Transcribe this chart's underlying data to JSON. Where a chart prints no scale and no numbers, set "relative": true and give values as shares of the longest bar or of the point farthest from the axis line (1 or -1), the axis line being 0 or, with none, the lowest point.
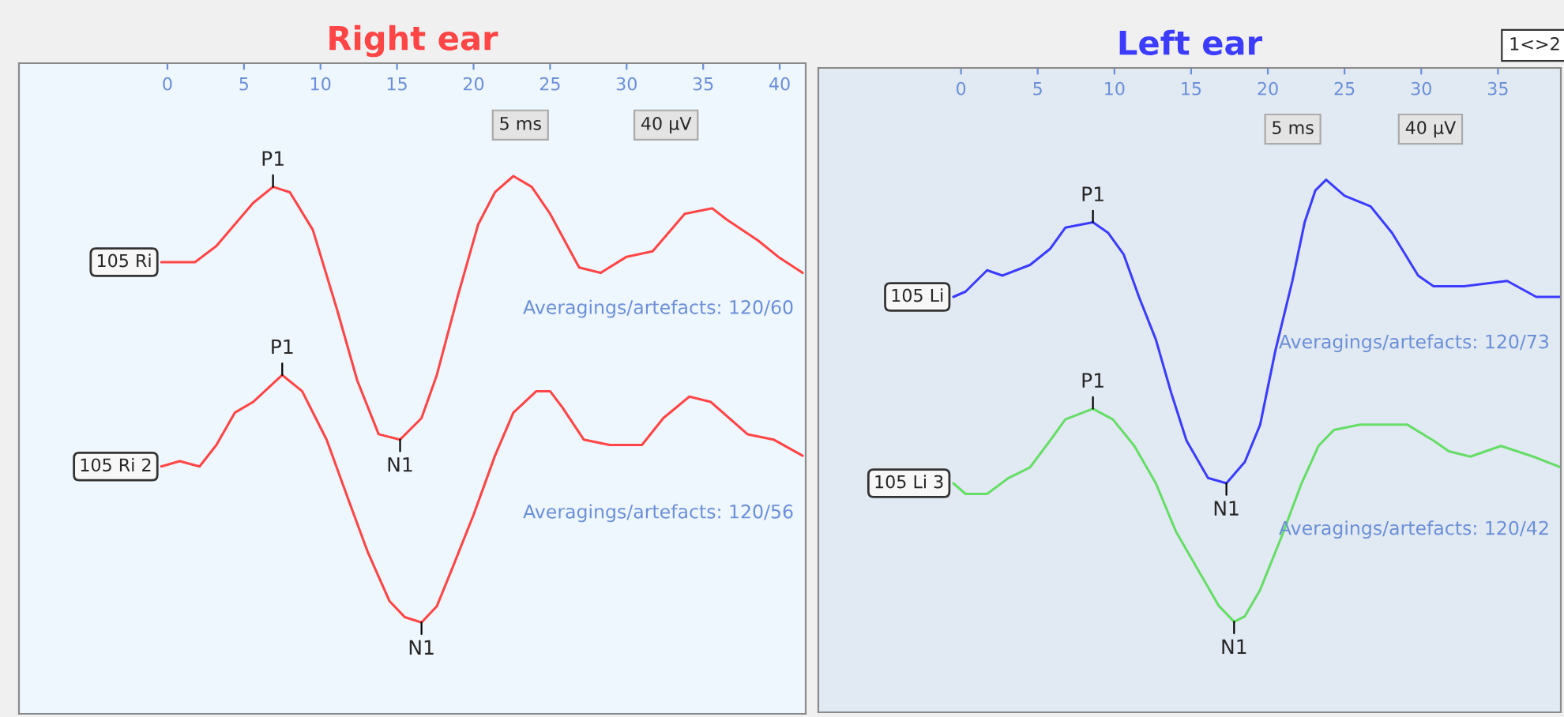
{
  "chart_data": [
    {
      "type": "line",
      "title": "Right ear",
      "relative": true,
      "xlim": [
        -9.7,
        41.7
      ],
      "xticks": [
        0,
        5,
        10,
        15,
        20,
        25,
        30,
        35,
        40
      ],
      "tick_labels": "x",
      "legend": false,
      "series": [
        {
          "name": "105 Ri",
          "color": "#ff4545",
          "x": [
            -0.4,
            1.8,
            3.2,
            4.4,
            5.6,
            6.9,
            8.0,
            9.5,
            11.1,
            12.4,
            13.8,
            15.2,
            16.6,
            17.6,
            19.0,
            20.3,
            21.4,
            22.6,
            23.8,
            25.0,
            26.9,
            28.3,
            30.0,
            31.7,
            33.8,
            35.6,
            36.5,
            38.6,
            39.9,
            41.5
          ],
          "values": [
            0.84,
            0.84,
            0.87,
            0.91,
            0.95,
            0.98,
            0.97,
            0.9,
            0.75,
            0.62,
            0.52,
            0.51,
            0.55,
            0.63,
            0.78,
            0.91,
            0.97,
            1.0,
            0.98,
            0.93,
            0.83,
            0.82,
            0.85,
            0.86,
            0.93,
            0.94,
            0.92,
            0.88,
            0.85,
            0.82
          ]
        },
        {
          "name": "105 Ri 2",
          "color": "#ff4545",
          "x": [
            -0.4,
            0.8,
            2.1,
            3.2,
            4.4,
            5.6,
            7.5,
            8.8,
            10.4,
            11.8,
            13.1,
            14.5,
            15.5,
            16.6,
            17.6,
            18.6,
            20.0,
            21.4,
            22.6,
            24.1,
            25.0,
            25.8,
            27.2,
            28.9,
            31.0,
            32.4,
            34.1,
            35.5,
            37.9,
            39.6,
            41.5
          ],
          "values": [
            0.46,
            0.47,
            0.46,
            0.5,
            0.56,
            0.58,
            0.63,
            0.6,
            0.51,
            0.4,
            0.3,
            0.21,
            0.18,
            0.17,
            0.2,
            0.27,
            0.37,
            0.48,
            0.56,
            0.6,
            0.6,
            0.57,
            0.51,
            0.5,
            0.5,
            0.55,
            0.59,
            0.58,
            0.52,
            0.51,
            0.48
          ]
        }
      ],
      "annotations": [
        {
          "text": "P1",
          "x": 6.9,
          "y": 0.98
        },
        {
          "text": "N1",
          "x": 15.2,
          "y": 0.51
        },
        {
          "text": "P1",
          "x": 7.5,
          "y": 0.63
        },
        {
          "text": "N1",
          "x": 16.6,
          "y": 0.17
        },
        "Averagings/artefacts: 120/60",
        "Averagings/artefacts: 120/56",
        "5 ms",
        "40 µV"
      ]
    },
    {
      "type": "line",
      "title": "Left ear",
      "relative": true,
      "xlim": [
        -9.3,
        39.1
      ],
      "xticks": [
        0,
        5,
        10,
        15,
        20,
        25,
        30,
        35
      ],
      "tick_labels": "x",
      "legend": false,
      "series": [
        {
          "name": "105 Li",
          "color": "#3c3cff",
          "x": [
            -0.5,
            0.3,
            1.7,
            2.7,
            4.5,
            5.8,
            6.8,
            8.6,
            9.6,
            10.6,
            11.6,
            12.7,
            13.7,
            14.7,
            16.1,
            17.3,
            18.5,
            19.5,
            20.5,
            21.6,
            22.4,
            23.1,
            23.8,
            25.0,
            26.7,
            28.1,
            29.8,
            30.8,
            32.8,
            35.6,
            37.5,
            39.1
          ],
          "values": [
            0.78,
            0.79,
            0.83,
            0.82,
            0.84,
            0.87,
            0.91,
            0.92,
            0.9,
            0.86,
            0.78,
            0.7,
            0.6,
            0.51,
            0.44,
            0.43,
            0.47,
            0.54,
            0.68,
            0.81,
            0.92,
            0.98,
            1.0,
            0.97,
            0.95,
            0.9,
            0.82,
            0.8,
            0.8,
            0.81,
            0.78,
            0.78
          ]
        },
        {
          "name": "105 Li 3",
          "color": "#66dd66",
          "x": [
            -0.5,
            0.3,
            1.7,
            3.1,
            4.5,
            5.8,
            6.8,
            8.6,
            9.9,
            11.3,
            12.7,
            14.0,
            15.4,
            16.8,
            17.8,
            18.5,
            19.5,
            20.9,
            22.2,
            23.3,
            24.3,
            26.0,
            27.7,
            29.1,
            30.8,
            31.8,
            33.2,
            35.2,
            37.3,
            39.1
          ],
          "values": [
            0.43,
            0.41,
            0.41,
            0.44,
            0.46,
            0.51,
            0.55,
            0.57,
            0.55,
            0.5,
            0.43,
            0.34,
            0.27,
            0.2,
            0.17,
            0.18,
            0.23,
            0.33,
            0.43,
            0.5,
            0.53,
            0.54,
            0.54,
            0.54,
            0.51,
            0.49,
            0.48,
            0.5,
            0.48,
            0.46
          ]
        }
      ],
      "annotations": [
        {
          "text": "P1",
          "x": 8.6,
          "y": 0.92
        },
        {
          "text": "N1",
          "x": 17.3,
          "y": 0.43
        },
        {
          "text": "P1",
          "x": 8.6,
          "y": 0.57
        },
        {
          "text": "N1",
          "x": 17.8,
          "y": 0.17
        },
        "Averagings/artefacts: 120/73",
        "Averagings/artefacts: 120/42",
        "5 ms",
        "40 µV",
        "1<>2"
      ]
    }
  ]
}
